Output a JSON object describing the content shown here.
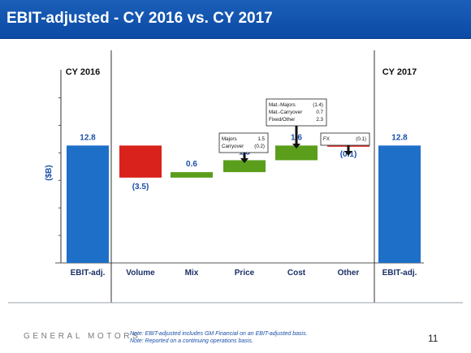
{
  "title": "EBIT-adjusted - CY 2016 vs. CY 2017",
  "chart_data": {
    "type": "bar",
    "subtype": "waterfall",
    "ylabel": "($B)",
    "period_labels": [
      "CY 2016",
      "CY 2017"
    ],
    "categories": [
      "EBIT-adj.",
      "Volume",
      "Mix",
      "Price",
      "Cost",
      "Other",
      "EBIT-adj."
    ],
    "values": [
      12.8,
      -3.5,
      0.6,
      1.3,
      1.6,
      -0.1,
      12.8
    ],
    "value_labels": [
      "12.8",
      "(3.5)",
      "0.6",
      "1.3",
      "1.6",
      "(0.1)",
      "12.8"
    ],
    "kinds": [
      "total",
      "delta",
      "delta",
      "delta",
      "delta",
      "delta",
      "total"
    ],
    "ylim": [
      0,
      21.5
    ],
    "colors": {
      "total": "#1e6fc8",
      "negative": "#d9221c",
      "positive": "#5a9e1c",
      "label": "#1a4fa8"
    },
    "callouts": [
      {
        "category": "Price",
        "rows": [
          {
            "label": "Majors",
            "value": "1.5"
          },
          {
            "label": "Carryover",
            "value": "(0.2)"
          }
        ]
      },
      {
        "category": "Cost",
        "rows": [
          {
            "label": "Mat.-Majors",
            "value": "(1.4)"
          },
          {
            "label": "Mat.-Carryover",
            "value": "0.7"
          },
          {
            "label": "Fixed/Other",
            "value": "2.3"
          }
        ]
      },
      {
        "category": "Other",
        "rows": [
          {
            "label": "FX",
            "value": "(0.1)"
          }
        ]
      }
    ]
  },
  "footer": {
    "brand": "GENERAL MOTORS",
    "notes": [
      "Note: EBIT-adjusted includes GM Financial on an EBIT-adjusted basis.",
      "Note: Reported on a continuing operations basis."
    ],
    "page_number": "11"
  }
}
